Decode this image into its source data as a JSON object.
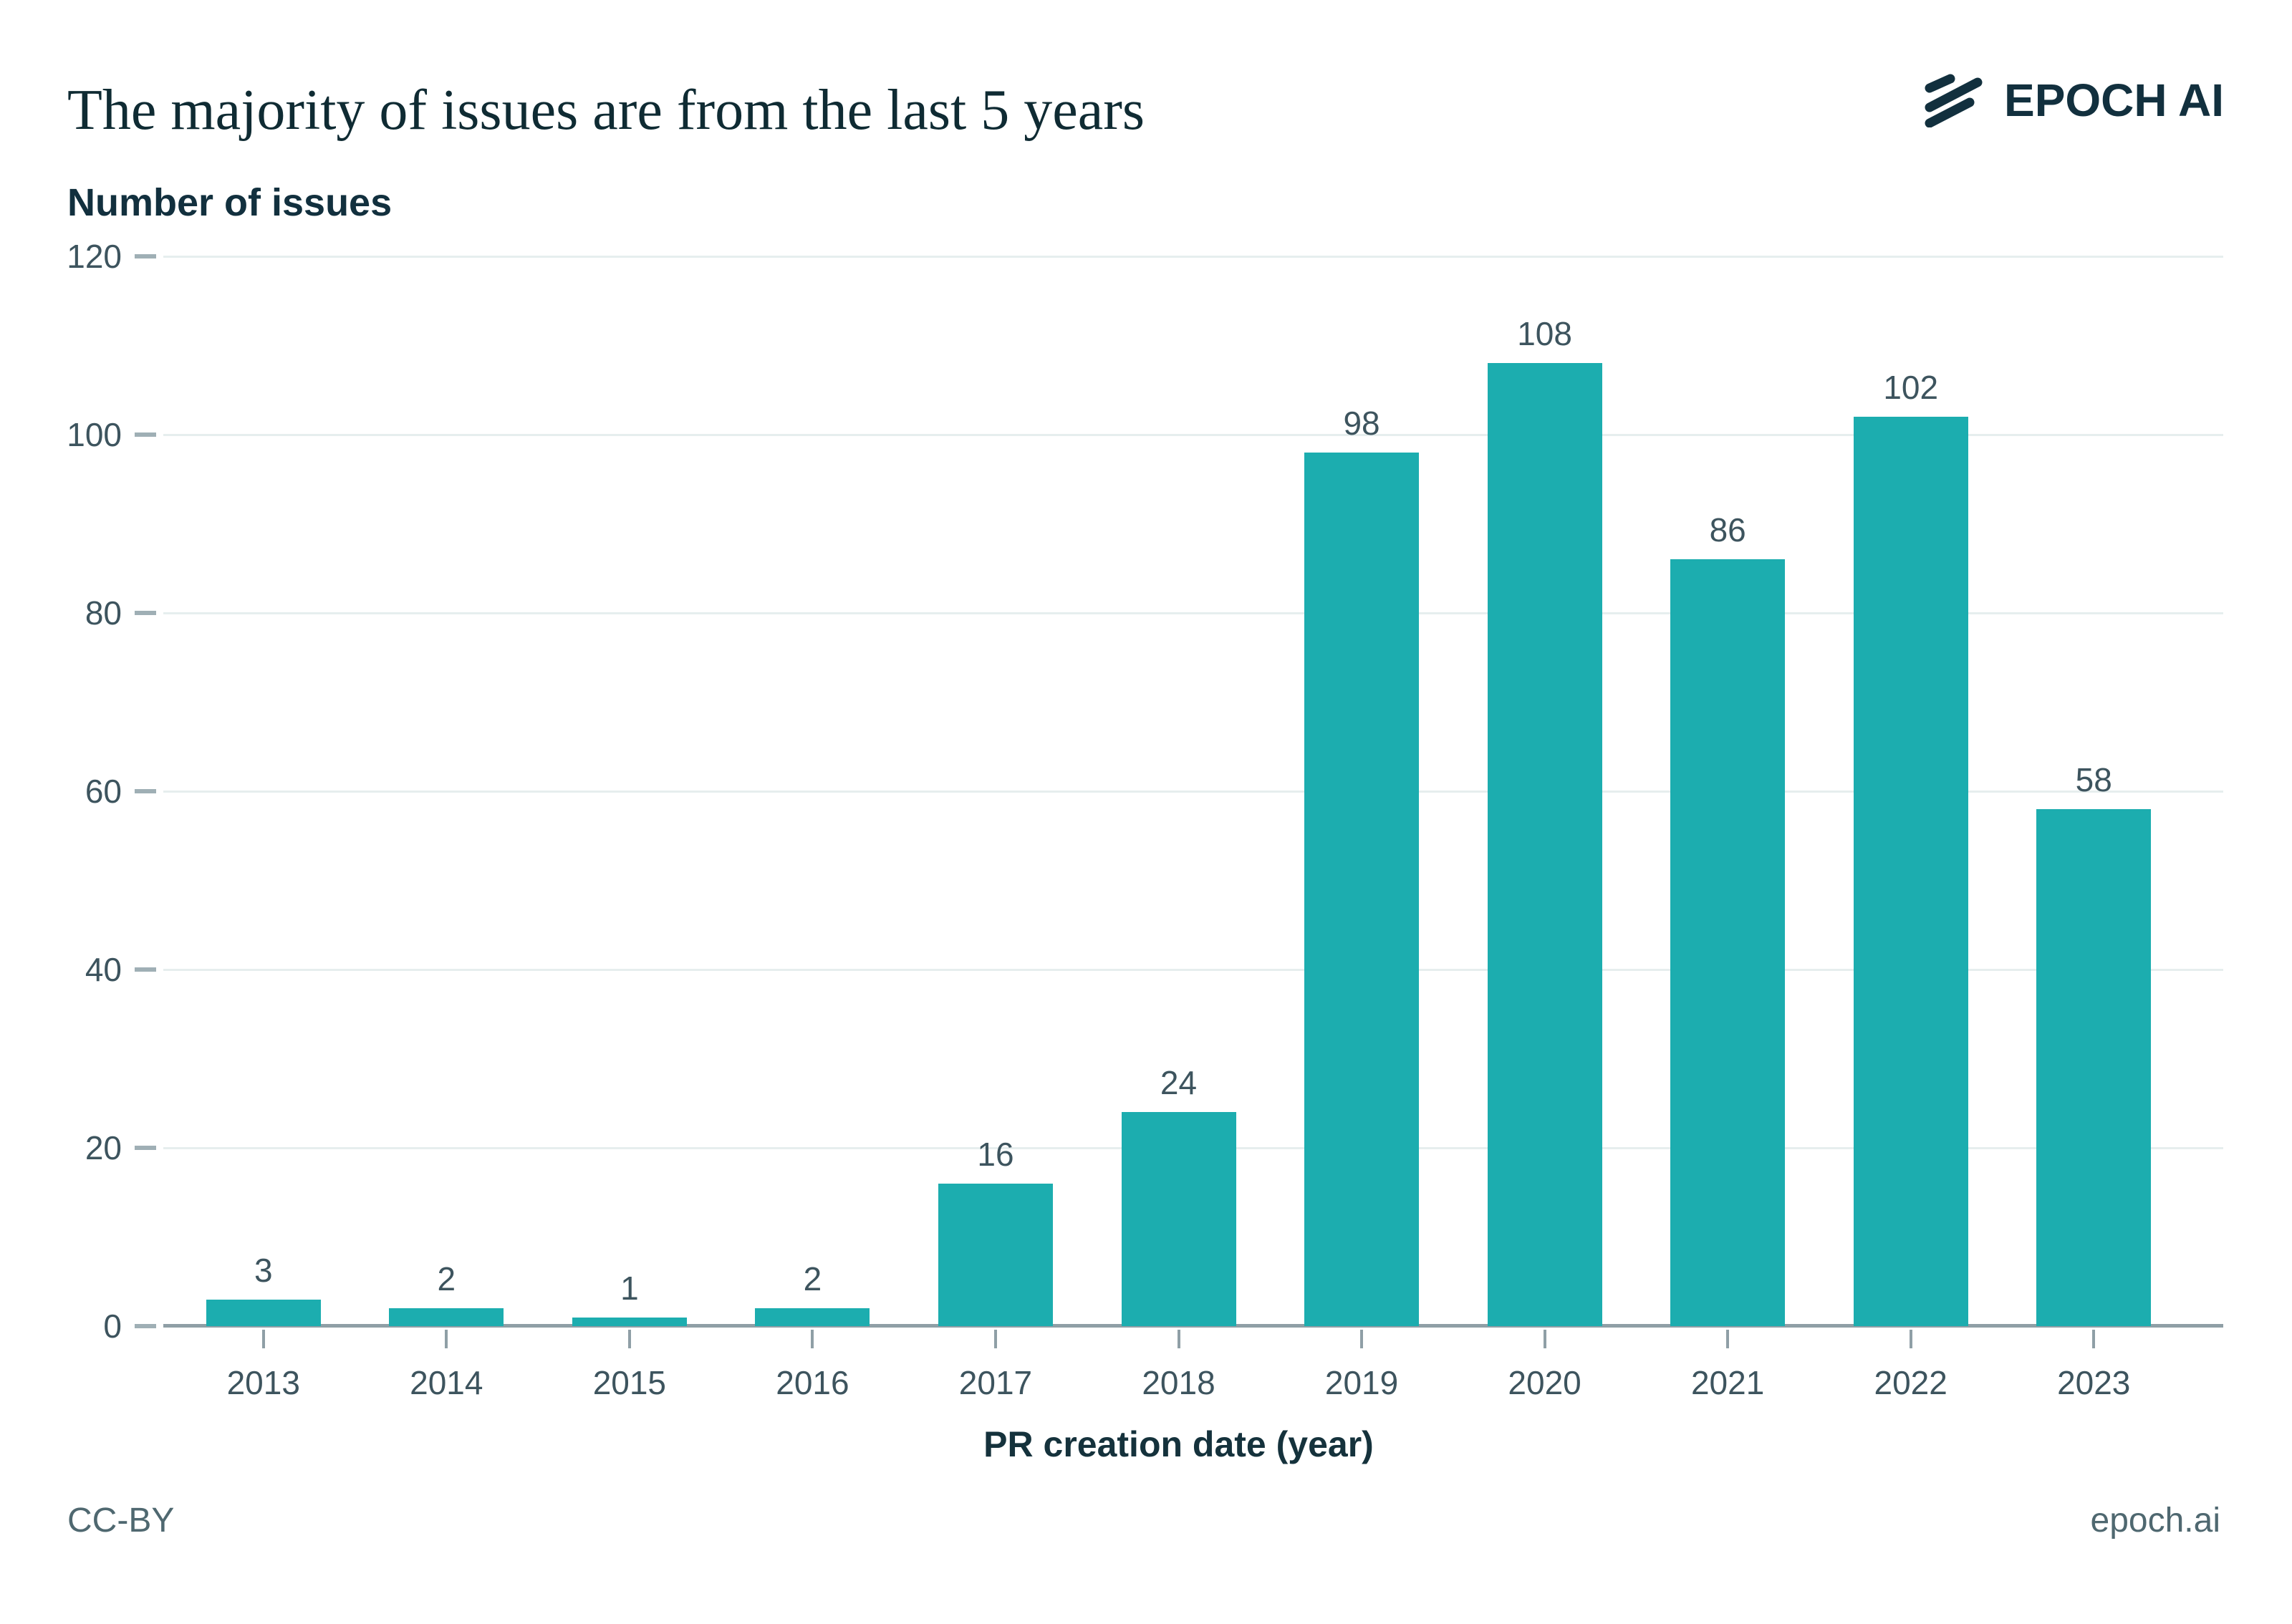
{
  "header": {
    "logo_text": "EPOCH AI"
  },
  "chart_data": {
    "type": "bar",
    "title": "The majority of issues are from the last 5 years",
    "ylabel": "Number of issues",
    "xlabel": "PR creation date (year)",
    "categories": [
      "2013",
      "2014",
      "2015",
      "2016",
      "2017",
      "2018",
      "2019",
      "2020",
      "2021",
      "2022",
      "2023"
    ],
    "values": [
      3,
      2,
      1,
      2,
      16,
      24,
      98,
      108,
      86,
      102,
      58
    ],
    "ylim": [
      0,
      120
    ],
    "ytick_step": 20,
    "grid": "horizontal",
    "legend": "none",
    "value_labels": true
  },
  "footer": {
    "license": "CC-BY",
    "site": "epoch.ai"
  },
  "colors": {
    "bar": "#1CADAF",
    "title_text": "#0F2B33",
    "dark_text": "#12303E",
    "label_text": "#3D545E",
    "gridline": "#E6EEEE",
    "axis_line": "#8F9FA6",
    "tick_mark": "#9FAFB5",
    "footer_text": "#4F6870",
    "background": "#FFFFFF"
  }
}
